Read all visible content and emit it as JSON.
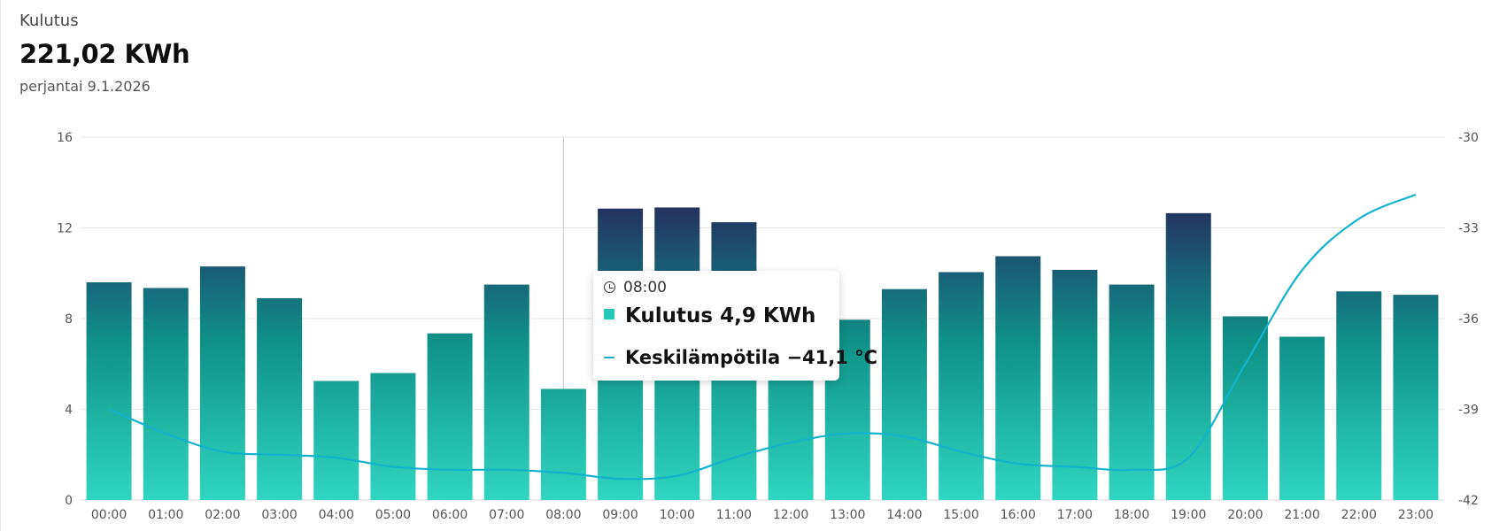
{
  "header": {
    "label": "Kulutus",
    "total": "221,02 KWh",
    "date": "perjantai 9.1.2026"
  },
  "tooltip": {
    "time": "08:00",
    "consumption": "Kulutus 4,9 KWh",
    "temperature": "Keskilämpötila −41,1 °C",
    "clock_icon": "clock-icon"
  },
  "colors": {
    "bar_low": "#2fd6c0",
    "bar_mid": "#0f8f86",
    "bar_high": "#24305e",
    "line": "#13b2cf",
    "grid": "#e5e5e5"
  },
  "chart_data": {
    "type": "bar",
    "categories": [
      "00:00",
      "01:00",
      "02:00",
      "03:00",
      "04:00",
      "05:00",
      "06:00",
      "07:00",
      "08:00",
      "09:00",
      "10:00",
      "11:00",
      "12:00",
      "13:00",
      "14:00",
      "15:00",
      "16:00",
      "17:00",
      "18:00",
      "19:00",
      "20:00",
      "21:00",
      "22:00",
      "23:00"
    ],
    "series": [
      {
        "name": "Kulutus",
        "axis": "left",
        "type": "bar",
        "values": [
          9.6,
          9.35,
          10.3,
          8.9,
          5.25,
          5.6,
          7.35,
          9.5,
          4.9,
          12.85,
          12.9,
          12.25,
          7.5,
          7.95,
          9.3,
          10.05,
          10.75,
          10.15,
          9.5,
          12.65,
          8.1,
          7.2,
          9.2,
          9.05
        ]
      },
      {
        "name": "Keskilämpötila",
        "axis": "right",
        "type": "line",
        "values": [
          -39.0,
          -39.8,
          -40.4,
          -40.5,
          -40.6,
          -40.9,
          -41.0,
          -41.0,
          -41.1,
          -41.3,
          -41.2,
          -40.6,
          -40.1,
          -39.8,
          -39.9,
          -40.4,
          -40.8,
          -40.9,
          -41.0,
          -40.6,
          -37.5,
          -34.4,
          -32.7,
          -31.9
        ]
      }
    ],
    "y_left": {
      "min": 0,
      "max": 16,
      "ticks": [
        "0",
        "4",
        "8",
        "12",
        "16"
      ]
    },
    "y_right": {
      "min": -42,
      "max": -30,
      "ticks": [
        "-42",
        "-39",
        "-36",
        "-33",
        "-30"
      ]
    },
    "grid": true,
    "highlight_category": "08:00"
  }
}
